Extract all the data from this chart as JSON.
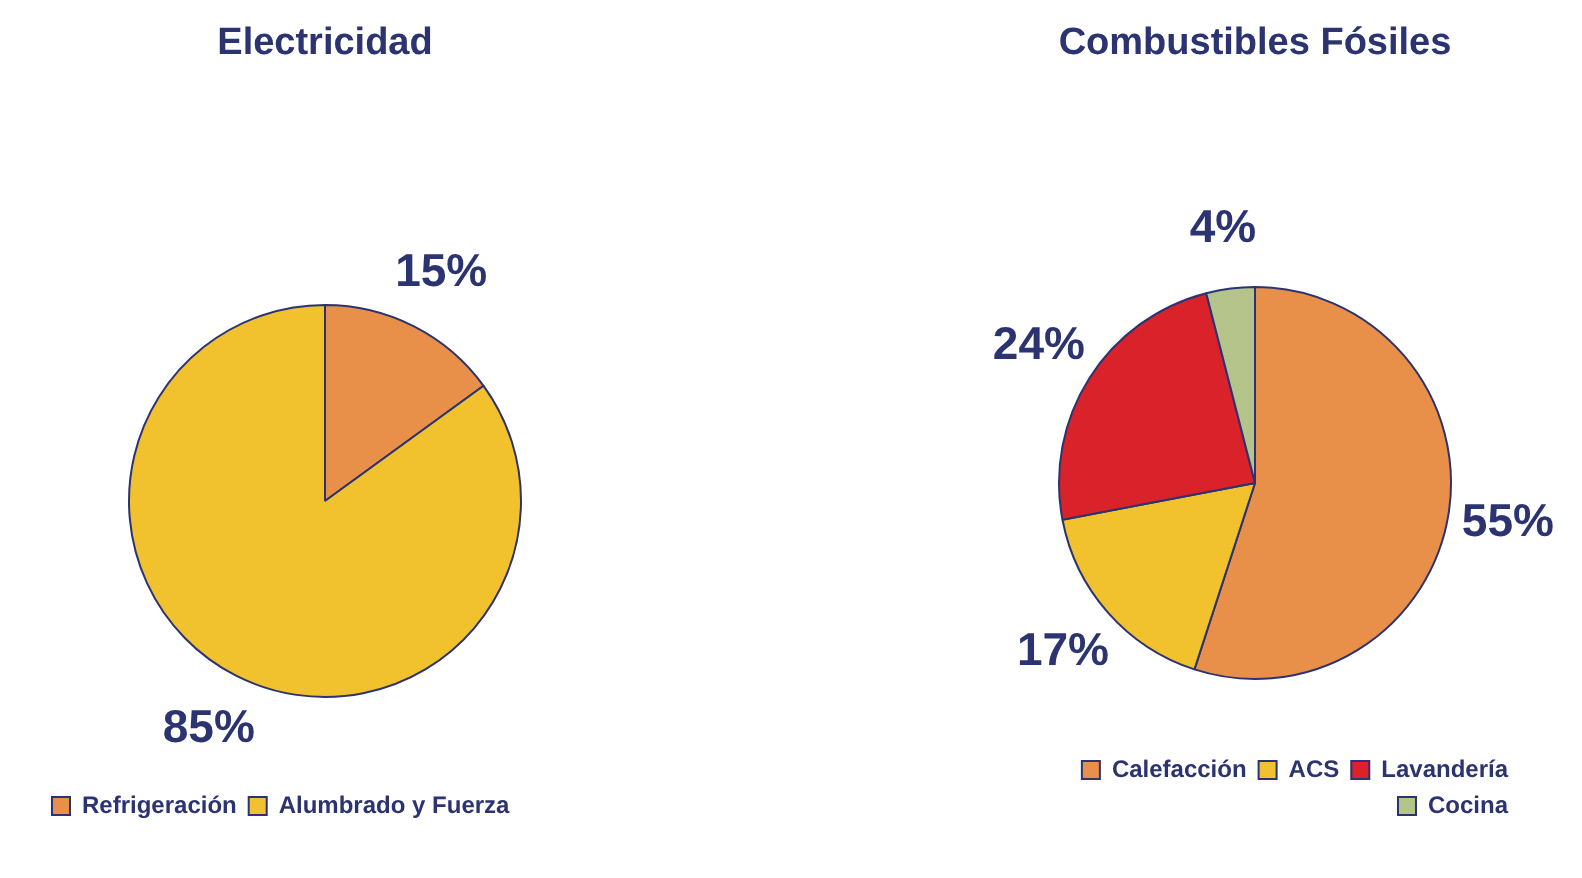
{
  "chart_data": [
    {
      "type": "pie",
      "title": "Electricidad",
      "categories": [
        "Refrigeración",
        "Alumbrado y Fuerza"
      ],
      "values": [
        15,
        85
      ],
      "colors": [
        "#e8904a",
        "#f2c12e"
      ],
      "value_labels": [
        "15%",
        "85%"
      ],
      "legend": "bottom"
    },
    {
      "type": "pie",
      "title": "Combustibles Fósiles",
      "categories": [
        "Calefacción",
        "ACS",
        "Lavandería",
        "Cocina"
      ],
      "values": [
        55,
        17,
        24,
        4
      ],
      "colors": [
        "#e8904a",
        "#f2c12e",
        "#d9222a",
        "#b5c48a"
      ],
      "value_labels": [
        "55%",
        "17%",
        "24%",
        "4%"
      ],
      "legend": "bottom"
    }
  ]
}
